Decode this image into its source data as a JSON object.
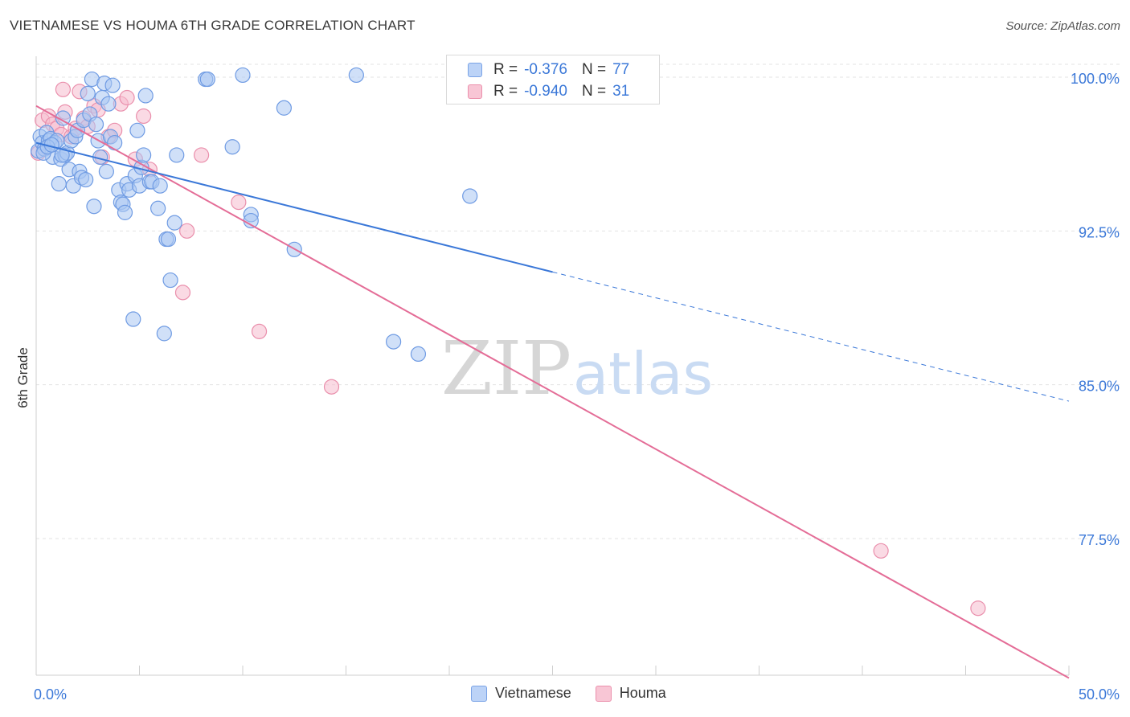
{
  "header": {
    "title": "VIETNAMESE VS HOUMA 6TH GRADE CORRELATION CHART",
    "source": "Source: ZipAtlas.com"
  },
  "stats": {
    "vietnamese": {
      "r_label": "R =",
      "r_value": "-0.376",
      "n_label": "N =",
      "n_value": "77"
    },
    "houma": {
      "r_label": "R =",
      "r_value": "-0.940",
      "n_label": "N =",
      "n_value": "31"
    }
  },
  "legend": {
    "vietnamese": "Vietnamese",
    "houma": "Houma"
  },
  "watermark": {
    "zip": "ZIP",
    "atlas": "atlas"
  },
  "colors": {
    "blue_fill": "#a9c6f2",
    "blue_stroke": "#6f9be3",
    "blue_line": "#3b78d8",
    "pink_fill": "#f6bccd",
    "pink_stroke": "#ea8fac",
    "pink_line": "#e46d97",
    "tick_label": "#3b78d8",
    "grid": "#e3e3e3"
  },
  "chart_data": {
    "type": "scatter",
    "title": "VIETNAMESE VS HOUMA 6TH GRADE CORRELATION CHART",
    "xlabel": "",
    "ylabel": "6th Grade",
    "xlim": [
      0,
      50
    ],
    "ylim": [
      70.5,
      101.5
    ],
    "x_tick_labels": [
      {
        "value": 0,
        "label": "0.0%"
      },
      {
        "value": 50,
        "label": "50.0%"
      }
    ],
    "y_tick_labels": [
      {
        "value": 100,
        "label": "100.0%"
      },
      {
        "value": 92.5,
        "label": "92.5%"
      },
      {
        "value": 85,
        "label": "85.0%"
      },
      {
        "value": 77.5,
        "label": "77.5%"
      }
    ],
    "x_minor_ticks": [
      0,
      5,
      10,
      15,
      20,
      25,
      30,
      35,
      40,
      45,
      50
    ],
    "series": [
      {
        "name": "Vietnamese",
        "points": [
          [
            0.1,
            96.4
          ],
          [
            0.2,
            97.1
          ],
          [
            0.3,
            96.8
          ],
          [
            0.4,
            96.5
          ],
          [
            0.5,
            97.3
          ],
          [
            0.6,
            96.9
          ],
          [
            0.7,
            97.0
          ],
          [
            0.8,
            96.1
          ],
          [
            0.9,
            96.8
          ],
          [
            1.0,
            96.9
          ],
          [
            1.1,
            94.8
          ],
          [
            1.2,
            96.0
          ],
          [
            1.3,
            98.0
          ],
          [
            1.4,
            96.2
          ],
          [
            1.5,
            96.3
          ],
          [
            1.6,
            95.5
          ],
          [
            1.7,
            96.9
          ],
          [
            1.8,
            94.7
          ],
          [
            1.9,
            97.1
          ],
          [
            2.0,
            97.4
          ],
          [
            2.1,
            95.4
          ],
          [
            2.2,
            95.1
          ],
          [
            2.3,
            97.9
          ],
          [
            2.4,
            95.0
          ],
          [
            2.5,
            99.2
          ],
          [
            2.6,
            98.2
          ],
          [
            2.7,
            99.9
          ],
          [
            2.8,
            93.7
          ],
          [
            2.9,
            97.7
          ],
          [
            3.0,
            96.9
          ],
          [
            3.1,
            96.1
          ],
          [
            3.2,
            99.0
          ],
          [
            3.3,
            99.7
          ],
          [
            3.4,
            95.4
          ],
          [
            3.5,
            98.7
          ],
          [
            3.6,
            97.1
          ],
          [
            3.7,
            99.6
          ],
          [
            3.8,
            96.8
          ],
          [
            4.0,
            94.5
          ],
          [
            4.1,
            93.9
          ],
          [
            4.2,
            93.8
          ],
          [
            4.3,
            93.4
          ],
          [
            4.4,
            94.8
          ],
          [
            4.5,
            94.5
          ],
          [
            4.7,
            88.2
          ],
          [
            4.8,
            95.2
          ],
          [
            4.9,
            97.4
          ],
          [
            5.0,
            94.7
          ],
          [
            5.1,
            95.6
          ],
          [
            5.2,
            96.2
          ],
          [
            5.3,
            99.1
          ],
          [
            5.5,
            94.9
          ],
          [
            5.6,
            94.9
          ],
          [
            5.9,
            93.6
          ],
          [
            6.0,
            94.7
          ],
          [
            6.2,
            87.5
          ],
          [
            6.3,
            92.1
          ],
          [
            6.4,
            92.1
          ],
          [
            6.5,
            90.1
          ],
          [
            6.7,
            92.9
          ],
          [
            6.8,
            96.2
          ],
          [
            8.2,
            99.9
          ],
          [
            8.3,
            99.9
          ],
          [
            9.5,
            96.6
          ],
          [
            10.0,
            100.1
          ],
          [
            10.4,
            93.3
          ],
          [
            10.4,
            93.0
          ],
          [
            12.0,
            98.5
          ],
          [
            12.5,
            91.6
          ],
          [
            15.5,
            100.1
          ],
          [
            17.3,
            87.1
          ],
          [
            18.5,
            86.5
          ],
          [
            21.0,
            94.2
          ],
          [
            0.35,
            96.3
          ],
          [
            0.55,
            96.6
          ],
          [
            0.75,
            96.7
          ],
          [
            1.25,
            96.2
          ]
        ],
        "trend_solid": [
          [
            0.0,
            96.8
          ],
          [
            25.0,
            90.5
          ]
        ],
        "trend_dashed": [
          [
            25.0,
            90.5
          ],
          [
            50.0,
            84.2
          ]
        ]
      },
      {
        "name": "Houma",
        "points": [
          [
            0.1,
            96.3
          ],
          [
            0.3,
            97.9
          ],
          [
            0.6,
            98.1
          ],
          [
            0.8,
            97.7
          ],
          [
            1.0,
            97.5
          ],
          [
            1.2,
            97.2
          ],
          [
            1.4,
            98.3
          ],
          [
            1.7,
            97.1
          ],
          [
            1.9,
            97.5
          ],
          [
            2.1,
            99.3
          ],
          [
            2.3,
            98.0
          ],
          [
            2.5,
            97.6
          ],
          [
            2.8,
            98.6
          ],
          [
            3.0,
            98.4
          ],
          [
            3.2,
            96.1
          ],
          [
            3.5,
            97.1
          ],
          [
            3.8,
            97.4
          ],
          [
            4.1,
            98.7
          ],
          [
            4.4,
            99.0
          ],
          [
            4.8,
            96.0
          ],
          [
            5.2,
            98.1
          ],
          [
            5.5,
            95.5
          ],
          [
            7.3,
            92.5
          ],
          [
            8.0,
            96.2
          ],
          [
            9.8,
            93.9
          ],
          [
            10.8,
            87.6
          ],
          [
            14.3,
            84.9
          ],
          [
            7.1,
            89.5
          ],
          [
            40.9,
            76.9
          ],
          [
            45.6,
            74.1
          ],
          [
            1.3,
            99.4
          ]
        ],
        "trend_solid": [
          [
            0.0,
            98.6
          ],
          [
            50.0,
            70.7
          ]
        ]
      }
    ]
  }
}
